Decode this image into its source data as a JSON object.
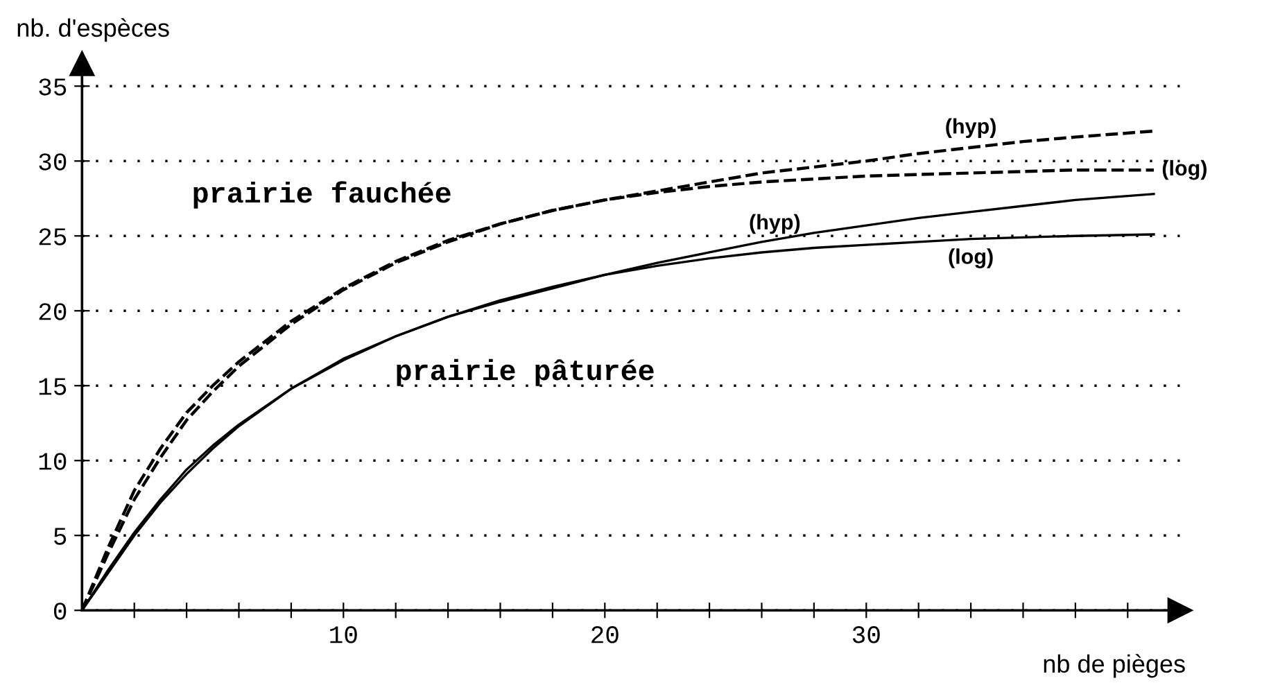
{
  "chart_data": {
    "type": "line",
    "xlabel": "nb de pièges",
    "ylabel": "nb. d'espèces",
    "x": [
      0,
      1,
      2,
      3,
      4,
      5,
      6,
      8,
      10,
      12,
      14,
      16,
      18,
      20,
      22,
      24,
      26,
      28,
      30,
      32,
      34,
      36,
      38,
      41
    ],
    "series": [
      {
        "name": "(hyp)",
        "color": "#000000",
        "line_style": "dashed",
        "values": [
          0,
          4.2,
          8,
          10.8,
          13.2,
          15,
          16.6,
          19.3,
          21.5,
          23.3,
          24.7,
          25.8,
          26.7,
          27.4,
          28.0,
          28.6,
          29.2,
          29.6,
          30.0,
          30.5,
          30.9,
          31.3,
          31.6,
          32.0
        ]
      },
      {
        "name": "(log)",
        "color": "#000000",
        "line_style": "dashed",
        "values": [
          0,
          3.8,
          7.4,
          10.2,
          12.7,
          14.6,
          16.3,
          19.1,
          21.4,
          23.2,
          24.6,
          25.8,
          26.7,
          27.4,
          27.9,
          28.3,
          28.6,
          28.8,
          29.0,
          29.1,
          29.2,
          29.3,
          29.4,
          29.4
        ]
      },
      {
        "name": "(hyp)",
        "color": "#000000",
        "line_style": "solid",
        "values": [
          0,
          2.7,
          5.2,
          7.4,
          9.4,
          11,
          12.4,
          14.8,
          16.8,
          18.3,
          19.6,
          20.6,
          21.5,
          22.4,
          23.2,
          23.9,
          24.6,
          25.2,
          25.7,
          26.2,
          26.6,
          27.0,
          27.4,
          27.8
        ]
      },
      {
        "name": "(log)",
        "color": "#000000",
        "line_style": "solid",
        "values": [
          0,
          2.5,
          5.0,
          7.2,
          9.1,
          10.8,
          12.3,
          14.8,
          16.7,
          18.3,
          19.6,
          20.7,
          21.6,
          22.4,
          23.0,
          23.5,
          23.9,
          24.2,
          24.4,
          24.6,
          24.8,
          24.9,
          25.0,
          25.1
        ]
      }
    ],
    "annotations": [
      "prairie fauchée",
      "prairie pâturée"
    ],
    "xlim": [
      0,
      42
    ],
    "ylim": [
      0,
      36.5
    ],
    "xticks": [
      {
        "value": 2,
        "label": null
      },
      {
        "value": 4,
        "label": null
      },
      {
        "value": 6,
        "label": null
      },
      {
        "value": 8,
        "label": null
      },
      10,
      {
        "value": 12,
        "label": null
      },
      {
        "value": 14,
        "label": null
      },
      {
        "value": 16,
        "label": null
      },
      {
        "value": 18,
        "label": null
      },
      20,
      {
        "value": 22,
        "label": null
      },
      {
        "value": 24,
        "label": null
      },
      {
        "value": 26,
        "label": null
      },
      {
        "value": 28,
        "label": null
      },
      30,
      {
        "value": 32,
        "label": null
      },
      {
        "value": 34,
        "label": null
      },
      {
        "value": 36,
        "label": null
      },
      {
        "value": 38,
        "label": null
      },
      {
        "value": 40,
        "label": null
      }
    ],
    "yticks": [
      0,
      5,
      10,
      15,
      20,
      25,
      30,
      35
    ],
    "grid": "y",
    "legend": false,
    "marker": "none"
  }
}
